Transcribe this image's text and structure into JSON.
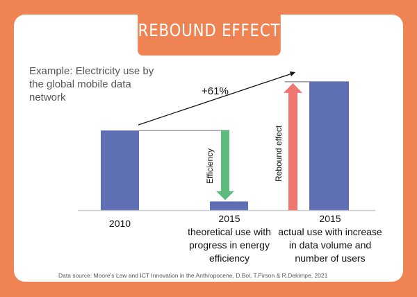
{
  "title": "REBOUND EFFECT",
  "subtitle": "Example: Electricity use by the global mobile data network",
  "source": "Data source: Moore's Law and ICT Innovation in the Anthropocene, D.Bol, T.Pirson & R.Dekimpe, 2021",
  "chart_data": {
    "type": "bar",
    "categories": [
      "2010",
      "2015 theoretical use with progress in energy efficiency",
      "2015 actual use with increase in data volume and number of users"
    ],
    "values": [
      100,
      11,
      161
    ],
    "annotations": {
      "growth": "+61%",
      "efficiency": "Efficiency",
      "rebound": "Rebound effect"
    },
    "labels": [
      {
        "year": "2010",
        "desc": ""
      },
      {
        "year": "2015",
        "desc": "theoretical use with progress in energy efficiency"
      },
      {
        "year": "2015",
        "desc": "actual use with increase in data volume and number of users"
      }
    ],
    "colors": {
      "bar": "#5e6fb3",
      "efficiency": "#5dba7d",
      "rebound": "#ee7570",
      "accent": "#f08354"
    }
  }
}
